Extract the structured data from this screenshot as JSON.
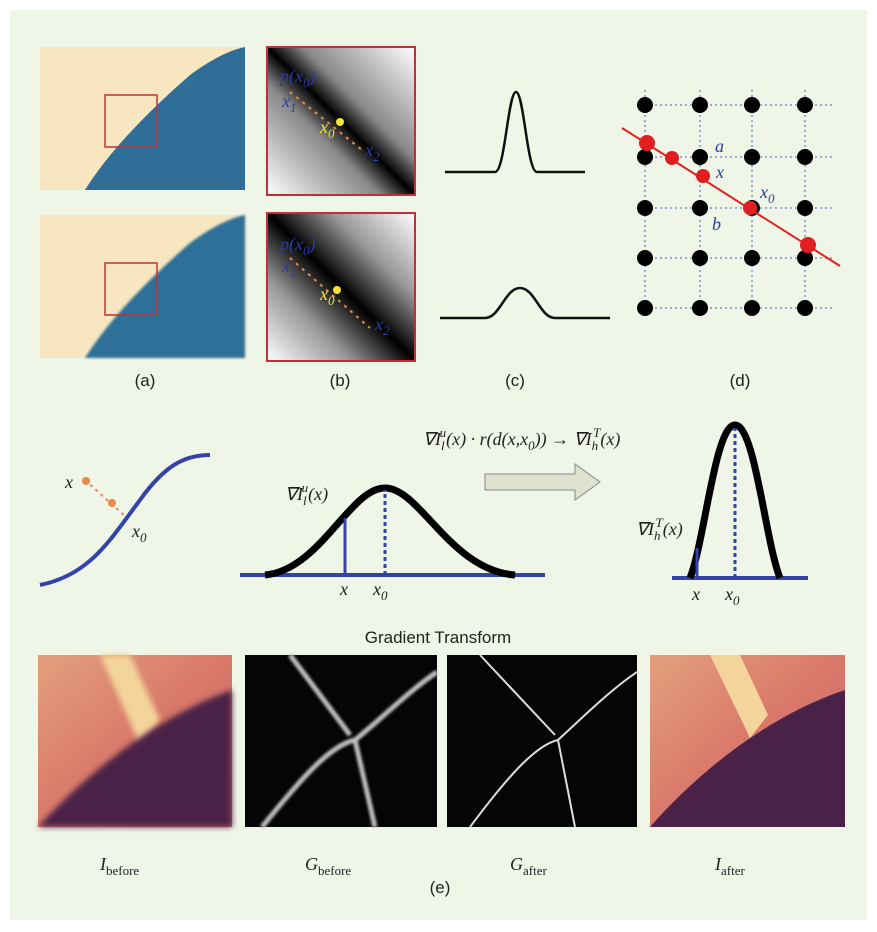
{
  "panel_labels": [
    "(a)",
    "(b)",
    "(c)",
    "(d)",
    "(e)"
  ],
  "b_labels": {
    "top": [
      [
        {
          "text": "p(x"
        },
        {
          "text": "0",
          "script": "sub"
        },
        {
          "text": ")"
        }
      ],
      [
        {
          "text": "x"
        },
        {
          "text": "1",
          "script": "sub"
        }
      ],
      [
        {
          "text": "x"
        },
        {
          "text": "0",
          "script": "sub"
        }
      ],
      [
        {
          "text": "x"
        },
        {
          "text": "2",
          "script": "sub"
        }
      ]
    ],
    "bottom": [
      [
        {
          "text": "p(x"
        },
        {
          "text": "0",
          "script": "sub"
        },
        {
          "text": ")"
        }
      ],
      [
        {
          "text": "x"
        },
        {
          "text": "1",
          "script": "sub"
        }
      ],
      [
        {
          "text": "x"
        },
        {
          "text": "0",
          "script": "sub"
        }
      ],
      [
        {
          "text": "x"
        },
        {
          "text": "2",
          "script": "sub"
        }
      ]
    ]
  },
  "d_labels": [
    [
      {
        "text": "a"
      }
    ],
    [
      {
        "text": "x"
      }
    ],
    [
      {
        "text": "x"
      },
      {
        "text": "0",
        "script": "sub"
      }
    ],
    [
      {
        "text": "b"
      }
    ]
  ],
  "s_curve_labels": [
    [
      {
        "text": "x"
      }
    ],
    [
      {
        "text": "x"
      },
      {
        "text": "0",
        "script": "sub"
      }
    ]
  ],
  "gaussian_wide": {
    "label": [
      {
        "text": "∇I"
      },
      {
        "text": "l",
        "script": "sub"
      },
      {
        "text": "u",
        "script": "sup"
      },
      {
        "text": "(x)"
      }
    ],
    "x": [
      {
        "text": "x"
      }
    ],
    "x0": [
      {
        "text": "x"
      },
      {
        "text": "0",
        "script": "sub"
      }
    ]
  },
  "formula": [
    {
      "text": "∇I"
    },
    {
      "text": "l",
      "script": "sub"
    },
    {
      "text": "u",
      "script": "sup"
    },
    {
      "text": "(x) · r(d(x,x"
    },
    {
      "text": "0",
      "script": "sub"
    },
    {
      "text": ")) → ∇I"
    },
    {
      "text": "h",
      "script": "sub"
    },
    {
      "text": "T",
      "script": "sup"
    },
    {
      "text": "(x)"
    }
  ],
  "gaussian_narrow": {
    "label": [
      {
        "text": "∇I"
      },
      {
        "text": "h",
        "script": "sub"
      },
      {
        "text": "T",
        "script": "sup"
      },
      {
        "text": "(x)"
      }
    ],
    "x": [
      {
        "text": "x"
      }
    ],
    "x0": [
      {
        "text": "x"
      },
      {
        "text": "0",
        "script": "sub"
      }
    ]
  },
  "e_title": "Gradient Transform",
  "e_captions": [
    [
      {
        "text": "I"
      },
      {
        "text": "before",
        "script": "sub"
      }
    ],
    [
      {
        "text": "G"
      },
      {
        "text": "before",
        "script": "sub"
      }
    ],
    [
      {
        "text": "G"
      },
      {
        "text": "after",
        "script": "sub"
      }
    ],
    [
      {
        "text": "I"
      },
      {
        "text": "after",
        "script": "sub"
      }
    ]
  ]
}
